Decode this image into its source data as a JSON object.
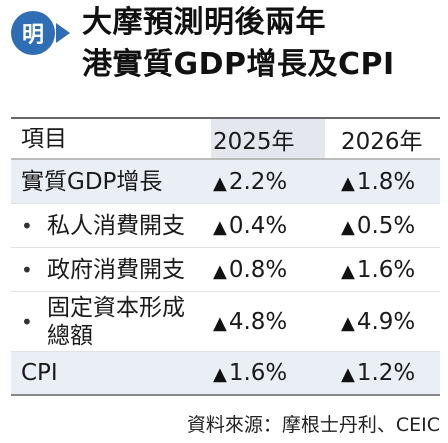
{
  "logo": {
    "glyph": "明",
    "icon": "ming-pao-logo-icon",
    "color": "#2f6db5"
  },
  "title": {
    "line1": "大摩預測明後兩年",
    "line2": "港實質GDP增長及CPI"
  },
  "chart_data": {
    "type": "table",
    "columns": [
      "項目",
      "2025年",
      "2026年"
    ],
    "rows": [
      {
        "label": "實質GDP增長",
        "bullet": "",
        "values": [
          "2.2%",
          "1.8%"
        ],
        "direction": [
          "up",
          "up"
        ]
      },
      {
        "label": "私人消費開支",
        "bullet": "•",
        "values": [
          "0.4%",
          "0.5%"
        ],
        "direction": [
          "up",
          "up"
        ]
      },
      {
        "label": "政府消費開支",
        "bullet": "•",
        "values": [
          "0.8%",
          "1.6%"
        ],
        "direction": [
          "up",
          "up"
        ]
      },
      {
        "label": "固定資本形成總額",
        "label_line1": "固定資本形成",
        "label_line2": "總額",
        "bullet": "•",
        "values": [
          "4.8%",
          "4.9%"
        ],
        "direction": [
          "up",
          "up"
        ]
      },
      {
        "label": "CPI",
        "bullet": "",
        "values": [
          "1.6%",
          "1.2%"
        ],
        "direction": [
          "up",
          "up"
        ]
      }
    ],
    "up_marker": "▲",
    "row_shade_color": "#eaeff6"
  },
  "source": "資料來源：摩根士丹利、CEIC"
}
